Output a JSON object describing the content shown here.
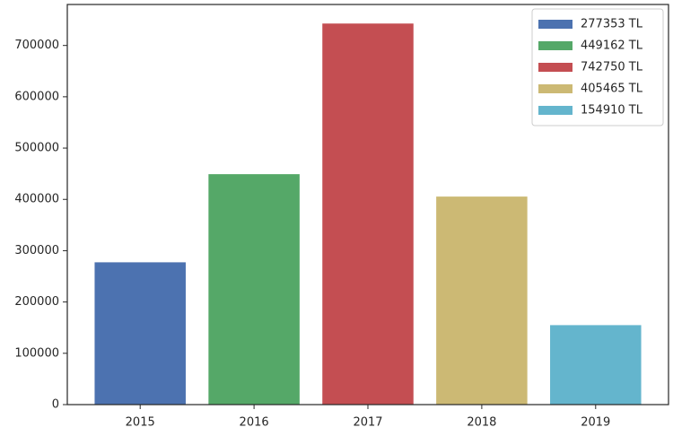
{
  "chart_data": {
    "type": "bar",
    "categories": [
      "2015",
      "2016",
      "2017",
      "2018",
      "2019"
    ],
    "series": [
      {
        "name": "277353 TL",
        "color": "#4c72b0",
        "values": [
          277353,
          null,
          null,
          null,
          null
        ]
      },
      {
        "name": "449162 TL",
        "color": "#55a868",
        "values": [
          null,
          449162,
          null,
          null,
          null
        ]
      },
      {
        "name": "742750 TL",
        "color": "#c44e52",
        "values": [
          null,
          null,
          742750,
          null,
          null
        ]
      },
      {
        "name": "405465 TL",
        "color": "#ccb974",
        "values": [
          null,
          null,
          null,
          405465,
          null
        ]
      },
      {
        "name": "154910 TL",
        "color": "#64b5cd",
        "values": [
          null,
          null,
          null,
          null,
          154910
        ]
      }
    ],
    "ylim": [
      0,
      779887.5
    ],
    "yticks": [
      0,
      100000,
      200000,
      300000,
      400000,
      500000,
      600000,
      700000
    ],
    "legend": "upper right"
  }
}
